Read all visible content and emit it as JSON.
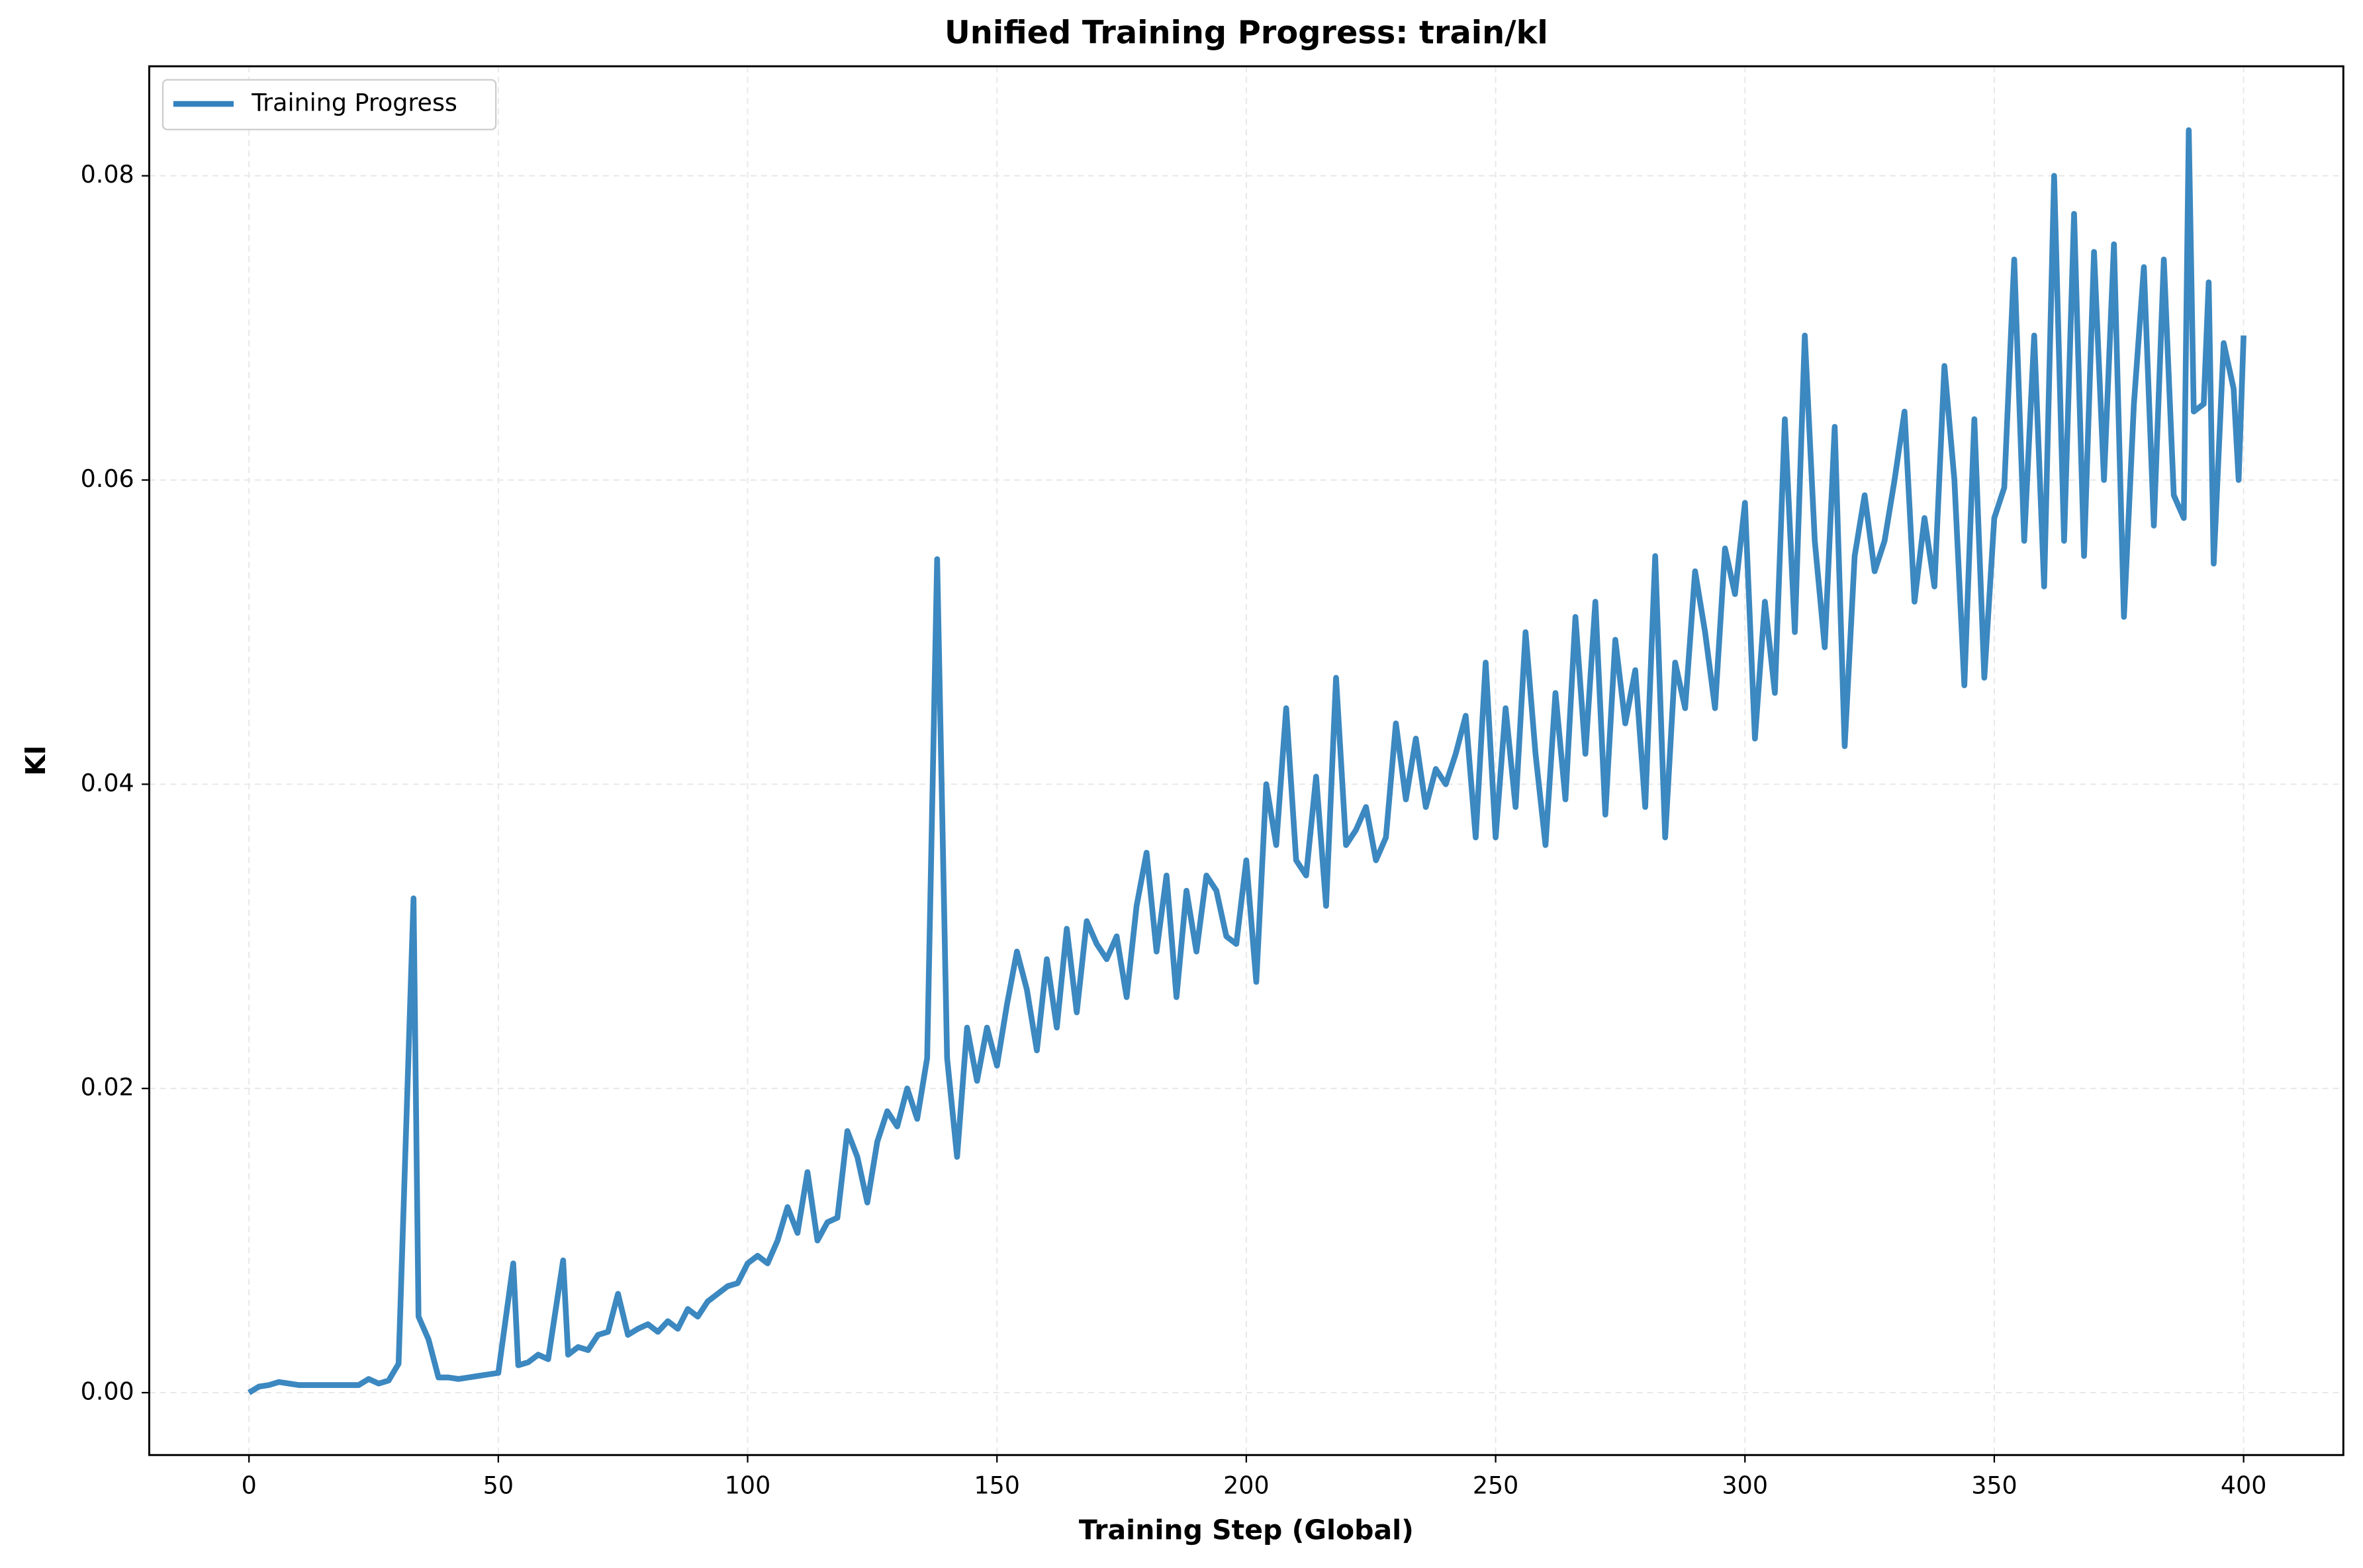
{
  "chart_data": {
    "type": "line",
    "title": "Unified Training Progress: train/kl",
    "x_label": "Training Step (Global)",
    "y_label": "Kl",
    "legend_position": "upper left",
    "grid": true,
    "xlim": [
      -20,
      420
    ],
    "ylim": [
      -0.0041,
      0.0872
    ],
    "xticks": [
      0,
      50,
      100,
      150,
      200,
      250,
      300,
      350,
      400
    ],
    "yticks": [
      {
        "value": 0,
        "label": "0.00"
      },
      {
        "value": 0.02,
        "label": "0.02"
      },
      {
        "value": 0.04,
        "label": "0.04"
      },
      {
        "value": 0.06,
        "label": "0.06"
      },
      {
        "value": 0.08,
        "label": "0.08"
      }
    ],
    "x": [
      0,
      2,
      4,
      6,
      8,
      10,
      12,
      14,
      16,
      18,
      20,
      22,
      24,
      26,
      28,
      30,
      33,
      34,
      36,
      38,
      40,
      42,
      44,
      46,
      48,
      50,
      53,
      54,
      56,
      58,
      60,
      63,
      64,
      66,
      68,
      70,
      72,
      74,
      76,
      78,
      80,
      82,
      84,
      86,
      88,
      90,
      92,
      94,
      96,
      98,
      100,
      102,
      104,
      106,
      108,
      110,
      112,
      114,
      116,
      118,
      120,
      122,
      124,
      126,
      128,
      130,
      132,
      134,
      136,
      138,
      140,
      142,
      144,
      146,
      148,
      150,
      152,
      154,
      156,
      158,
      160,
      162,
      164,
      166,
      168,
      170,
      172,
      174,
      176,
      178,
      180,
      182,
      184,
      186,
      188,
      190,
      192,
      194,
      196,
      198,
      200,
      202,
      204,
      206,
      208,
      210,
      212,
      214,
      216,
      218,
      220,
      222,
      224,
      226,
      228,
      230,
      232,
      234,
      236,
      238,
      240,
      242,
      244,
      246,
      248,
      250,
      252,
      254,
      256,
      258,
      260,
      262,
      264,
      266,
      268,
      270,
      272,
      274,
      276,
      278,
      280,
      282,
      284,
      286,
      288,
      290,
      292,
      294,
      296,
      298,
      300,
      302,
      304,
      306,
      308,
      310,
      312,
      314,
      316,
      318,
      320,
      322,
      324,
      326,
      328,
      330,
      332,
      334,
      336,
      338,
      340,
      342,
      344,
      346,
      348,
      350,
      352,
      354,
      356,
      358,
      360,
      362,
      364,
      366,
      368,
      370,
      372,
      374,
      376,
      378,
      380,
      382,
      384,
      386,
      388,
      389,
      390,
      392,
      393,
      394,
      396,
      398,
      399,
      400
    ],
    "series": [
      {
        "name": "Training Progress",
        "color": "#3182bd",
        "values": [
          0,
          0.0004,
          0.0005,
          0.0007,
          0.0006,
          0.0005,
          0.0005,
          0.0005,
          0.0005,
          0.0005,
          0.0005,
          0.0005,
          0.0009,
          0.0006,
          0.0008,
          0.0019,
          0.0325,
          0.005,
          0.0035,
          0.001,
          0.001,
          0.0009,
          0.001,
          0.0011,
          0.0012,
          0.0013,
          0.0085,
          0.0018,
          0.002,
          0.0025,
          0.0022,
          0.0087,
          0.0025,
          0.003,
          0.0028,
          0.0038,
          0.004,
          0.0065,
          0.0038,
          0.0042,
          0.0045,
          0.004,
          0.0047,
          0.0042,
          0.0055,
          0.005,
          0.006,
          0.0065,
          0.007,
          0.0072,
          0.0085,
          0.009,
          0.0085,
          0.01,
          0.0122,
          0.0105,
          0.0145,
          0.01,
          0.0112,
          0.0115,
          0.0172,
          0.0155,
          0.0125,
          0.0165,
          0.0185,
          0.0175,
          0.02,
          0.018,
          0.022,
          0.0548,
          0.022,
          0.0155,
          0.024,
          0.0205,
          0.024,
          0.0215,
          0.0255,
          0.029,
          0.0265,
          0.0225,
          0.0285,
          0.024,
          0.0305,
          0.025,
          0.031,
          0.0295,
          0.0285,
          0.03,
          0.026,
          0.032,
          0.0355,
          0.029,
          0.034,
          0.026,
          0.033,
          0.029,
          0.034,
          0.033,
          0.03,
          0.0295,
          0.035,
          0.027,
          0.04,
          0.036,
          0.045,
          0.035,
          0.034,
          0.0405,
          0.032,
          0.047,
          0.036,
          0.037,
          0.0385,
          0.035,
          0.0365,
          0.044,
          0.039,
          0.043,
          0.0385,
          0.041,
          0.04,
          0.042,
          0.0445,
          0.0365,
          0.048,
          0.0365,
          0.045,
          0.0385,
          0.05,
          0.042,
          0.036,
          0.046,
          0.039,
          0.051,
          0.042,
          0.052,
          0.038,
          0.0495,
          0.044,
          0.0475,
          0.0385,
          0.055,
          0.0365,
          0.048,
          0.045,
          0.054,
          0.05,
          0.045,
          0.0555,
          0.0525,
          0.0585,
          0.043,
          0.052,
          0.046,
          0.064,
          0.05,
          0.0695,
          0.056,
          0.049,
          0.0635,
          0.0425,
          0.055,
          0.059,
          0.054,
          0.056,
          0.06,
          0.0645,
          0.052,
          0.0575,
          0.053,
          0.0675,
          0.06,
          0.0465,
          0.064,
          0.047,
          0.0575,
          0.0595,
          0.0745,
          0.056,
          0.0695,
          0.053,
          0.08,
          0.056,
          0.0775,
          0.055,
          0.075,
          0.06,
          0.0755,
          0.051,
          0.065,
          0.074,
          0.057,
          0.0745,
          0.059,
          0.0575,
          0.083,
          0.0645,
          0.065,
          0.073,
          0.0545,
          0.069,
          0.066,
          0.06,
          0.0695
        ]
      }
    ]
  }
}
